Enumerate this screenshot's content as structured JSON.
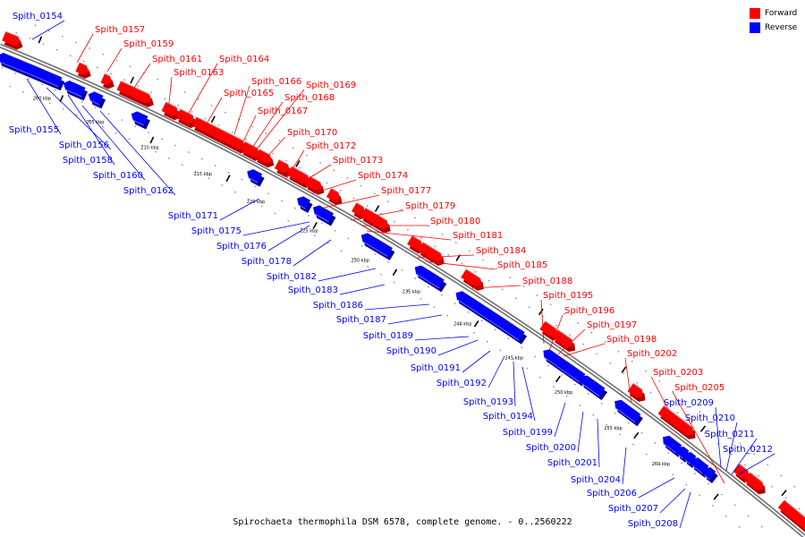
{
  "legend": {
    "forward": {
      "label": "Forward",
      "color": "#ff0000"
    },
    "reverse": {
      "label": "Reverse",
      "color": "#0000ff"
    }
  },
  "caption": "Spirochaeta thermophila DSM 6578, complete genome. - 0..2560222",
  "ticks": [
    "200 kbp",
    "205 kbp",
    "210 kbp",
    "215 kbp",
    "220 kbp",
    "225 kbp",
    "230 kbp",
    "235 kbp",
    "240 kbp",
    "245 kbp",
    "250 kbp",
    "255 kbp",
    "260 kbp"
  ],
  "forward_genes": [
    "Spith_0157",
    "Spith_0159",
    "Spith_0161",
    "Spith_0163",
    "Spith_0164",
    "Spith_0165",
    "Spith_0166",
    "Spith_0167",
    "Spith_0168",
    "Spith_0169",
    "Spith_0170",
    "Spith_0172",
    "Spith_0173",
    "Spith_0174",
    "Spith_0177",
    "Spith_0179",
    "Spith_0180",
    "Spith_0181",
    "Spith_0184",
    "Spith_0185",
    "Spith_0188",
    "Spith_0195",
    "Spith_0196",
    "Spith_0197",
    "Spith_0198",
    "Spith_0202",
    "Spith_0203",
    "Spith_0205"
  ],
  "reverse_genes": [
    "Spith_0154",
    "Spith_0155",
    "Spith_0156",
    "Spith_0158",
    "Spith_0160",
    "Spith_0162",
    "Spith_0171",
    "Spith_0175",
    "Spith_0176",
    "Spith_0178",
    "Spith_0182",
    "Spith_0183",
    "Spith_0186",
    "Spith_0187",
    "Spith_0189",
    "Spith_0190",
    "Spith_0191",
    "Spith_0192",
    "Spith_0193",
    "Spith_0194",
    "Spith_0199",
    "Spith_0200",
    "Spith_0201",
    "Spith_0204",
    "Spith_0206",
    "Spith_0207",
    "Spith_0208",
    "Spith_0209",
    "Spith_0210",
    "Spith_0211",
    "Spith_0212"
  ]
}
